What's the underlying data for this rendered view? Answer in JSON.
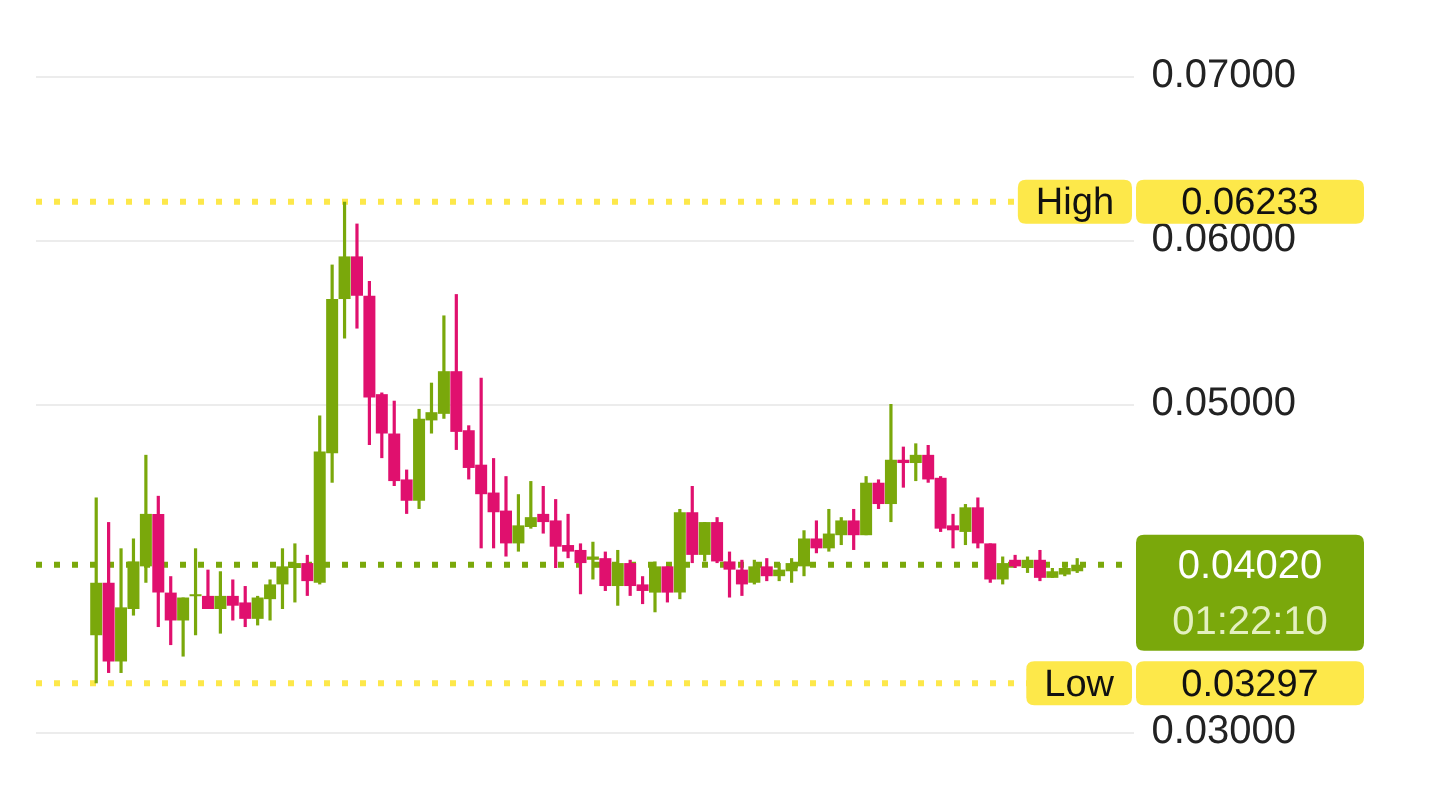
{
  "chart_data": {
    "type": "candlestick",
    "categories": [
      null,
      null,
      null,
      null,
      null,
      null,
      null,
      null,
      null,
      null,
      null,
      null,
      null,
      null,
      null,
      null,
      null,
      null,
      null,
      null,
      null,
      null,
      null,
      null,
      null,
      null,
      null,
      null,
      null,
      null,
      null,
      null,
      null,
      null,
      null,
      null,
      null,
      null,
      null,
      null,
      null,
      null,
      null,
      null,
      null,
      null,
      null,
      null,
      null,
      null,
      null,
      null,
      null,
      null,
      null,
      null,
      null,
      null,
      null,
      null,
      null,
      null,
      null,
      null,
      null,
      null,
      null,
      null,
      null,
      null,
      null,
      null,
      null,
      null,
      null,
      null,
      null,
      null,
      null,
      null
    ],
    "ohlc": [
      [
        0.0359,
        0.0443,
        0.03297,
        0.0391
      ],
      [
        0.0391,
        0.0428,
        0.0336,
        0.0343
      ],
      [
        0.0343,
        0.0412,
        0.0336,
        0.0376
      ],
      [
        0.0375,
        0.0418,
        0.0371,
        0.0404
      ],
      [
        0.0401,
        0.0469,
        0.0391,
        0.0433
      ],
      [
        0.0433,
        0.0444,
        0.0364,
        0.0385
      ],
      [
        0.0385,
        0.0395,
        0.0353,
        0.0368
      ],
      [
        0.0368,
        0.0382,
        0.0346,
        0.0382
      ],
      [
        0.0383,
        0.0412,
        0.0359,
        0.0384
      ],
      [
        0.0383,
        0.0399,
        0.0375,
        0.0375
      ],
      [
        0.0375,
        0.0398,
        0.036,
        0.0383
      ],
      [
        0.0383,
        0.0393,
        0.0368,
        0.0377
      ],
      [
        0.0379,
        0.0389,
        0.0364,
        0.0369
      ],
      [
        0.0369,
        0.0383,
        0.0365,
        0.0382
      ],
      [
        0.0381,
        0.0393,
        0.0368,
        0.039
      ],
      [
        0.039,
        0.0412,
        0.0375,
        0.0401
      ],
      [
        0.04,
        0.0415,
        0.0379,
        0.0403
      ],
      [
        0.0403,
        0.0408,
        0.0383,
        0.0392
      ],
      [
        0.0391,
        0.0493,
        0.039,
        0.0471
      ],
      [
        0.047,
        0.0585,
        0.0452,
        0.0564
      ],
      [
        0.0564,
        0.06233,
        0.054,
        0.059
      ],
      [
        0.059,
        0.061,
        0.0546,
        0.0566
      ],
      [
        0.0566,
        0.0575,
        0.0475,
        0.0504
      ],
      [
        0.0506,
        0.0507,
        0.0467,
        0.0482
      ],
      [
        0.0482,
        0.0502,
        0.045,
        0.0453
      ],
      [
        0.0454,
        0.046,
        0.0433,
        0.0441
      ],
      [
        0.0441,
        0.0497,
        0.0436,
        0.0491
      ],
      [
        0.049,
        0.0513,
        0.0482,
        0.0495
      ],
      [
        0.0494,
        0.0554,
        0.0491,
        0.052
      ],
      [
        0.052,
        0.0567,
        0.0472,
        0.0483
      ],
      [
        0.0484,
        0.0487,
        0.0454,
        0.0461
      ],
      [
        0.0463,
        0.0516,
        0.0412,
        0.0445
      ],
      [
        0.0446,
        0.0467,
        0.0412,
        0.0434
      ],
      [
        0.0435,
        0.0456,
        0.0407,
        0.0415
      ],
      [
        0.0415,
        0.0445,
        0.041,
        0.0426
      ],
      [
        0.0425,
        0.0453,
        0.0424,
        0.0431
      ],
      [
        0.0433,
        0.045,
        0.0421,
        0.0428
      ],
      [
        0.0429,
        0.0442,
        0.04,
        0.0413
      ],
      [
        0.0414,
        0.0433,
        0.0406,
        0.041
      ],
      [
        0.0411,
        0.0415,
        0.0384,
        0.0403
      ],
      [
        0.0405,
        0.0416,
        0.0393,
        0.0407
      ],
      [
        0.0406,
        0.041,
        0.0386,
        0.0389
      ],
      [
        0.0389,
        0.0411,
        0.0377,
        0.0403
      ],
      [
        0.0403,
        0.0405,
        0.0383,
        0.0389
      ],
      [
        0.039,
        0.0395,
        0.0378,
        0.0386
      ],
      [
        0.0385,
        0.0404,
        0.0373,
        0.0401
      ],
      [
        0.0401,
        0.0401,
        0.0379,
        0.0385
      ],
      [
        0.0385,
        0.0436,
        0.0381,
        0.0434
      ],
      [
        0.0434,
        0.045,
        0.0403,
        0.0408
      ],
      [
        0.0408,
        0.0428,
        0.0404,
        0.0428
      ],
      [
        0.0428,
        0.0431,
        0.0403,
        0.0404
      ],
      [
        0.0404,
        0.041,
        0.0382,
        0.0399
      ],
      [
        0.0399,
        0.0405,
        0.0383,
        0.039
      ],
      [
        0.0391,
        0.0405,
        0.039,
        0.0401
      ],
      [
        0.0401,
        0.0406,
        0.0392,
        0.0395
      ],
      [
        0.0395,
        0.0403,
        0.0392,
        0.0399
      ],
      [
        0.0398,
        0.0406,
        0.0391,
        0.0403
      ],
      [
        0.0401,
        0.0423,
        0.0395,
        0.0418
      ],
      [
        0.0418,
        0.0429,
        0.0409,
        0.0412
      ],
      [
        0.0412,
        0.0436,
        0.041,
        0.0421
      ],
      [
        0.042,
        0.0431,
        0.0414,
        0.0429
      ],
      [
        0.0429,
        0.0436,
        0.0411,
        0.042
      ],
      [
        0.042,
        0.0456,
        0.042,
        0.0452
      ],
      [
        0.0452,
        0.0454,
        0.0436,
        0.0439
      ],
      [
        0.0439,
        0.05,
        0.0428,
        0.0466
      ],
      [
        0.0466,
        0.0474,
        0.0449,
        0.0464
      ],
      [
        0.0464,
        0.0476,
        0.0453,
        0.0469
      ],
      [
        0.0469,
        0.0475,
        0.0452,
        0.0454
      ],
      [
        0.0455,
        0.0456,
        0.0422,
        0.0424
      ],
      [
        0.0426,
        0.0433,
        0.0412,
        0.0423
      ],
      [
        0.0422,
        0.0439,
        0.0414,
        0.0437
      ],
      [
        0.0437,
        0.0443,
        0.0412,
        0.0415
      ],
      [
        0.0415,
        0.0415,
        0.0391,
        0.0393
      ],
      [
        0.0393,
        0.0407,
        0.039,
        0.0403
      ],
      [
        0.0405,
        0.0408,
        0.04,
        0.0401
      ],
      [
        0.04,
        0.0407,
        0.0397,
        0.0405
      ],
      [
        0.0405,
        0.0411,
        0.0392,
        0.0394
      ],
      [
        0.0394,
        0.04,
        0.0394,
        0.0398
      ],
      [
        0.0396,
        0.0401,
        0.0395,
        0.04
      ],
      [
        0.0398,
        0.0406,
        0.0397,
        0.0402
      ]
    ],
    "colors": [
      "#7aa80b",
      "#e0106e",
      "#7aa80b",
      "#7aa80b",
      "#7aa80b",
      "#e0106e",
      "#e0106e",
      "#7aa80b",
      "#7aa80b",
      "#e0106e",
      "#7aa80b",
      "#e0106e",
      "#e0106e",
      "#7aa80b",
      "#7aa80b",
      "#7aa80b",
      "#7aa80b",
      "#e0106e",
      "#7aa80b",
      "#7aa80b",
      "#7aa80b",
      "#e0106e",
      "#e0106e",
      "#e0106e",
      "#e0106e",
      "#e0106e",
      "#7aa80b",
      "#7aa80b",
      "#7aa80b",
      "#e0106e",
      "#e0106e",
      "#e0106e",
      "#e0106e",
      "#e0106e",
      "#7aa80b",
      "#7aa80b",
      "#e0106e",
      "#e0106e",
      "#e0106e",
      "#e0106e",
      "#7aa80b",
      "#e0106e",
      "#7aa80b",
      "#e0106e",
      "#e0106e",
      "#7aa80b",
      "#e0106e",
      "#7aa80b",
      "#e0106e",
      "#7aa80b",
      "#e0106e",
      "#e0106e",
      "#e0106e",
      "#7aa80b",
      "#e0106e",
      "#7aa80b",
      "#7aa80b",
      "#7aa80b",
      "#e0106e",
      "#7aa80b",
      "#7aa80b",
      "#e0106e",
      "#7aa80b",
      "#e0106e",
      "#7aa80b",
      "#e0106e",
      "#7aa80b",
      "#e0106e",
      "#e0106e",
      "#e0106e",
      "#7aa80b",
      "#e0106e",
      "#e0106e",
      "#7aa80b",
      "#e0106e",
      "#7aa80b",
      "#e0106e",
      "#7aa80b",
      "#7aa80b",
      "#7aa80b"
    ],
    "ylim": [
      0.03,
      0.07
    ],
    "yticks": [
      {
        "value": 0.03,
        "label": "0.03000"
      },
      {
        "value": 0.05,
        "label": "0.05000"
      },
      {
        "value": 0.06,
        "label": "0.06000"
      },
      {
        "value": 0.07,
        "label": "0.07000"
      }
    ],
    "grid": "y",
    "tick_labels": "y",
    "ref_lines": [
      {
        "axis": "y",
        "value": 0.06233,
        "label": "High",
        "color": "#fde84a",
        "line_style": "dotted"
      },
      {
        "axis": "y",
        "value": 0.03297,
        "label": "Low",
        "color": "#fde84a",
        "line_style": "dotted"
      },
      {
        "axis": "y",
        "value": 0.0402,
        "label": "0.04020",
        "color": "#7aa80b",
        "line_style": "dotted"
      }
    ],
    "annotations": [
      "0.06233",
      "0.03297",
      "01:22:10"
    ]
  }
}
